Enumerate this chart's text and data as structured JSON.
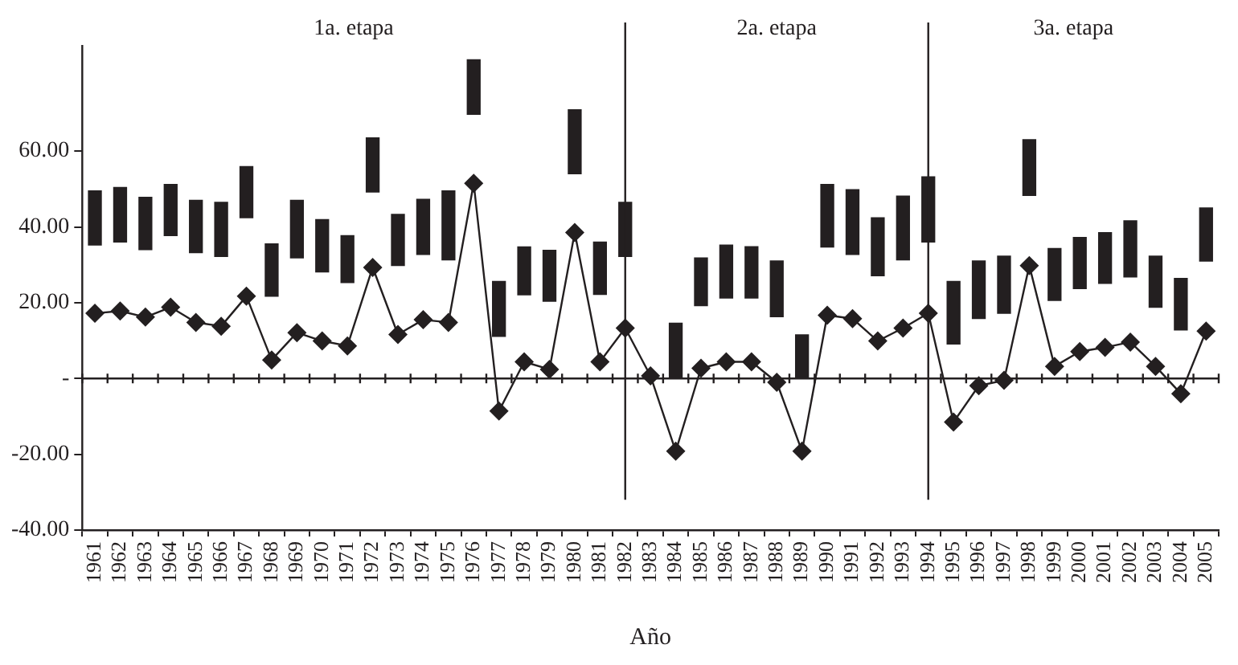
{
  "chart_data": {
    "type": "bar",
    "xlabel": "Año",
    "categories": [
      "1961",
      "1962",
      "1963",
      "1964",
      "1965",
      "1966",
      "1967",
      "1968",
      "1969",
      "1970",
      "1971",
      "1972",
      "1973",
      "1974",
      "1975",
      "1976",
      "1977",
      "1978",
      "1979",
      "1980",
      "1981",
      "1982",
      "1983",
      "1984",
      "1985",
      "1986",
      "1987",
      "1988",
      "1989",
      "1990",
      "1991",
      "1992",
      "1993",
      "1994",
      "1995",
      "1996",
      "1997",
      "1998",
      "1999",
      "2000",
      "2001",
      "2002",
      "2003",
      "2004",
      "2005"
    ],
    "series": [
      {
        "color": "#231f20",
        "base": [
          35.2,
          36.0,
          34.0,
          37.7,
          33.2,
          32.2,
          42.4,
          21.7,
          31.8,
          28.1,
          25.3,
          49.2,
          29.8,
          32.7,
          31.3,
          69.7,
          11.1,
          22.1,
          20.4,
          54.0,
          22.2,
          32.2,
          null,
          0,
          19.2,
          21.2,
          21.2,
          16.3,
          0,
          34.7,
          32.7,
          27.1,
          31.3,
          36.0,
          9.1,
          15.8,
          17.2,
          48.3,
          20.6,
          23.7,
          25.1,
          26.8,
          18.8,
          12.8,
          31.0
        ],
        "values": [
          14.3,
          14.4,
          13.8,
          13.5,
          13.8,
          14.3,
          13.5,
          13.8,
          15.2,
          13.8,
          12.4,
          14.3,
          13.5,
          14.6,
          18.2,
          14.4,
          14.5,
          12.6,
          13.4,
          16.9,
          13.8,
          14.3,
          null,
          14.6,
          12.6,
          14.0,
          13.6,
          14.7,
          11.5,
          16.5,
          17.1,
          15.3,
          16.8,
          17.2,
          16.5,
          15.2,
          15.1,
          14.7,
          13.7,
          13.5,
          13.4,
          14.8,
          13.5,
          13.6,
          14.0
        ]
      },
      {
        "type": "line",
        "color": "#231f20",
        "marker": "diamond",
        "line_style": "solid",
        "values": [
          17.2,
          17.8,
          16.2,
          18.8,
          14.8,
          13.8,
          21.7,
          4.9,
          12.1,
          9.9,
          8.6,
          29.3,
          11.6,
          15.5,
          14.8,
          51.5,
          -8.6,
          4.4,
          2.4,
          38.5,
          4.4,
          13.3,
          0.7,
          -19.2,
          2.7,
          4.4,
          4.4,
          -1.0,
          -19.2,
          16.7,
          15.8,
          9.9,
          13.3,
          17.2,
          -11.5,
          -1.9,
          -0.5,
          29.8,
          3.2,
          7.1,
          8.2,
          9.6,
          3.2,
          -4.0,
          12.5
        ]
      }
    ],
    "ylim": [
      -40,
      88
    ],
    "yticks": [
      {
        "value": -40,
        "label": "-40.00"
      },
      {
        "value": -20,
        "label": "-20.00"
      },
      {
        "value": 0,
        "label": "-"
      },
      {
        "value": 20,
        "label": "20.00"
      },
      {
        "value": 40,
        "label": "40.00"
      },
      {
        "value": 60,
        "label": "60.00"
      }
    ],
    "ref_lines": [
      {
        "axis": "y",
        "value": 0
      },
      {
        "axis": "x",
        "value": "1982"
      },
      {
        "axis": "x",
        "value": "1994"
      }
    ],
    "annotations": [
      "1a. etapa",
      "2a. etapa",
      "3a. etapa"
    ],
    "grid": false,
    "legend": false
  }
}
